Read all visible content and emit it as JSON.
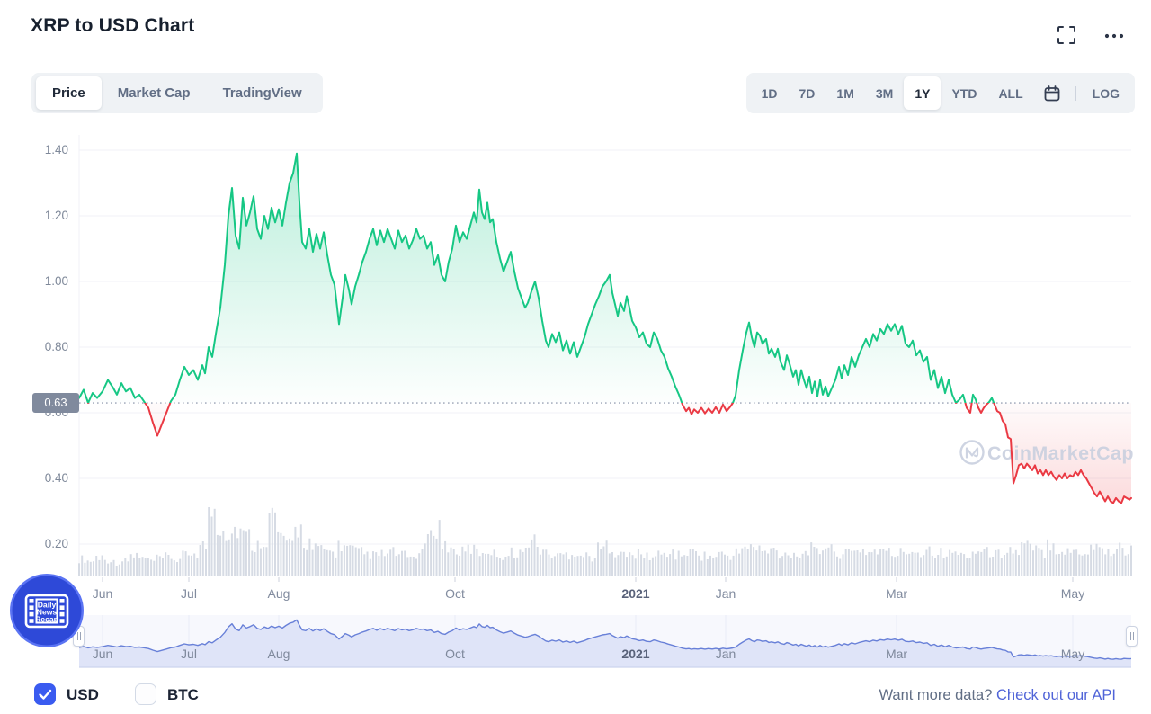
{
  "header": {
    "title": "XRP to USD Chart"
  },
  "tabs": {
    "items": [
      {
        "label": "Price",
        "active": true
      },
      {
        "label": "Market Cap",
        "active": false
      },
      {
        "label": "TradingView",
        "active": false
      }
    ]
  },
  "range_bar": {
    "items": [
      {
        "label": "1D",
        "active": false
      },
      {
        "label": "7D",
        "active": false
      },
      {
        "label": "1M",
        "active": false
      },
      {
        "label": "3M",
        "active": false
      },
      {
        "label": "1Y",
        "active": true
      },
      {
        "label": "YTD",
        "active": false
      },
      {
        "label": "ALL",
        "active": false
      }
    ],
    "calendar_icon": "calendar-icon",
    "log_label": "LOG"
  },
  "watermark": {
    "text": "CoinMarketCap"
  },
  "news_badge": {
    "lines": [
      "Daily",
      "News",
      "Recap"
    ]
  },
  "footer": {
    "currency_options": [
      {
        "label": "USD",
        "checked": true
      },
      {
        "label": "BTC",
        "checked": false
      }
    ],
    "prompt": "Want more data?",
    "link": "Check out our API"
  },
  "chart_data": {
    "type": "line",
    "title": "XRP to USD price, 1Y range",
    "x_axis": {
      "span": "May 2020 - May 2021",
      "xo_max": 1170,
      "ticks": [
        {
          "label": "Jun",
          "xo": 26
        },
        {
          "label": "Jul",
          "xo": 122
        },
        {
          "label": "Aug",
          "xo": 222
        },
        {
          "label": "Oct",
          "xo": 418
        },
        {
          "label": "2021",
          "xo": 619,
          "bold": true
        },
        {
          "label": "Jan",
          "xo": 719
        },
        {
          "label": "Mar",
          "xo": 909
        },
        {
          "label": "May",
          "xo": 1105
        }
      ]
    },
    "y_axis": {
      "unit": "USD",
      "ticks": [
        {
          "label": "1.40",
          "v": 1.4
        },
        {
          "label": "1.20",
          "v": 1.2
        },
        {
          "label": "1.00",
          "v": 1.0
        },
        {
          "label": "0.80",
          "v": 0.8
        },
        {
          "label": "0.60",
          "v": 0.6
        },
        {
          "label": "0.40",
          "v": 0.4
        },
        {
          "label": "0.20",
          "v": 0.2
        }
      ]
    },
    "current_price": 0.63,
    "current_price_label": "0.63",
    "threshold": 0.63,
    "colors": {
      "up": "#16c784",
      "down": "#ea3943",
      "volume": "#d6dbe4",
      "nav_line": "#6880d8",
      "nav_fill": "#dfe4f8",
      "nav_bg": "#f7f8fd",
      "grid": "#f0f2f7",
      "threshold_dots": "#9aa3b6",
      "price_tag_bg": "#808a9d",
      "watermark": "#c9d0df"
    },
    "price_series": [
      [
        0,
        0.645
      ],
      [
        5,
        0.67
      ],
      [
        10,
        0.63
      ],
      [
        15,
        0.66
      ],
      [
        20,
        0.645
      ],
      [
        26,
        0.665
      ],
      [
        32,
        0.7
      ],
      [
        38,
        0.675
      ],
      [
        42,
        0.655
      ],
      [
        47,
        0.69
      ],
      [
        52,
        0.665
      ],
      [
        57,
        0.675
      ],
      [
        62,
        0.645
      ],
      [
        67,
        0.655
      ],
      [
        72,
        0.635
      ],
      [
        77,
        0.615
      ],
      [
        82,
        0.57
      ],
      [
        87,
        0.53
      ],
      [
        92,
        0.565
      ],
      [
        97,
        0.6
      ],
      [
        102,
        0.635
      ],
      [
        107,
        0.655
      ],
      [
        112,
        0.7
      ],
      [
        117,
        0.74
      ],
      [
        122,
        0.715
      ],
      [
        127,
        0.73
      ],
      [
        132,
        0.7
      ],
      [
        137,
        0.745
      ],
      [
        140,
        0.72
      ],
      [
        144,
        0.8
      ],
      [
        148,
        0.77
      ],
      [
        152,
        0.84
      ],
      [
        157,
        0.92
      ],
      [
        162,
        1.05
      ],
      [
        166,
        1.2
      ],
      [
        170,
        1.285
      ],
      [
        174,
        1.14
      ],
      [
        178,
        1.1
      ],
      [
        182,
        1.255
      ],
      [
        186,
        1.17
      ],
      [
        190,
        1.21
      ],
      [
        194,
        1.26
      ],
      [
        198,
        1.16
      ],
      [
        202,
        1.13
      ],
      [
        206,
        1.2
      ],
      [
        210,
        1.16
      ],
      [
        214,
        1.225
      ],
      [
        218,
        1.18
      ],
      [
        222,
        1.22
      ],
      [
        226,
        1.17
      ],
      [
        230,
        1.24
      ],
      [
        234,
        1.3
      ],
      [
        238,
        1.33
      ],
      [
        242,
        1.39
      ],
      [
        245,
        1.24
      ],
      [
        248,
        1.12
      ],
      [
        252,
        1.1
      ],
      [
        256,
        1.16
      ],
      [
        260,
        1.09
      ],
      [
        264,
        1.145
      ],
      [
        268,
        1.1
      ],
      [
        272,
        1.15
      ],
      [
        276,
        1.08
      ],
      [
        280,
        1.02
      ],
      [
        284,
        0.99
      ],
      [
        289,
        0.87
      ],
      [
        293,
        0.95
      ],
      [
        296,
        1.02
      ],
      [
        300,
        0.975
      ],
      [
        303,
        0.93
      ],
      [
        307,
        0.985
      ],
      [
        311,
        1.02
      ],
      [
        315,
        1.06
      ],
      [
        319,
        1.09
      ],
      [
        323,
        1.13
      ],
      [
        327,
        1.16
      ],
      [
        331,
        1.11
      ],
      [
        335,
        1.155
      ],
      [
        339,
        1.12
      ],
      [
        343,
        1.16
      ],
      [
        347,
        1.13
      ],
      [
        351,
        1.1
      ],
      [
        355,
        1.155
      ],
      [
        359,
        1.12
      ],
      [
        363,
        1.14
      ],
      [
        367,
        1.1
      ],
      [
        371,
        1.125
      ],
      [
        375,
        1.16
      ],
      [
        379,
        1.13
      ],
      [
        383,
        1.14
      ],
      [
        387,
        1.1
      ],
      [
        391,
        1.12
      ],
      [
        395,
        1.05
      ],
      [
        399,
        1.08
      ],
      [
        403,
        1.02
      ],
      [
        407,
        1.0
      ],
      [
        411,
        1.06
      ],
      [
        415,
        1.1
      ],
      [
        419,
        1.17
      ],
      [
        423,
        1.12
      ],
      [
        427,
        1.15
      ],
      [
        431,
        1.13
      ],
      [
        435,
        1.17
      ],
      [
        439,
        1.21
      ],
      [
        442,
        1.18
      ],
      [
        445,
        1.28
      ],
      [
        448,
        1.21
      ],
      [
        451,
        1.19
      ],
      [
        454,
        1.24
      ],
      [
        457,
        1.18
      ],
      [
        460,
        1.19
      ],
      [
        464,
        1.12
      ],
      [
        468,
        1.07
      ],
      [
        472,
        1.03
      ],
      [
        476,
        1.06
      ],
      [
        480,
        1.09
      ],
      [
        484,
        1.03
      ],
      [
        488,
        0.98
      ],
      [
        492,
        0.95
      ],
      [
        496,
        0.92
      ],
      [
        499,
        0.935
      ],
      [
        503,
        0.97
      ],
      [
        507,
        1.0
      ],
      [
        511,
        0.95
      ],
      [
        515,
        0.88
      ],
      [
        519,
        0.82
      ],
      [
        522,
        0.8
      ],
      [
        526,
        0.84
      ],
      [
        530,
        0.815
      ],
      [
        534,
        0.845
      ],
      [
        538,
        0.79
      ],
      [
        542,
        0.82
      ],
      [
        546,
        0.78
      ],
      [
        550,
        0.815
      ],
      [
        554,
        0.77
      ],
      [
        558,
        0.8
      ],
      [
        562,
        0.83
      ],
      [
        566,
        0.87
      ],
      [
        570,
        0.9
      ],
      [
        574,
        0.93
      ],
      [
        578,
        0.955
      ],
      [
        582,
        0.985
      ],
      [
        586,
        1.0
      ],
      [
        590,
        1.02
      ],
      [
        593,
        0.965
      ],
      [
        596,
        0.93
      ],
      [
        599,
        0.895
      ],
      [
        602,
        0.935
      ],
      [
        606,
        0.91
      ],
      [
        609,
        0.955
      ],
      [
        612,
        0.92
      ],
      [
        615,
        0.88
      ],
      [
        619,
        0.86
      ],
      [
        623,
        0.83
      ],
      [
        627,
        0.845
      ],
      [
        631,
        0.81
      ],
      [
        635,
        0.8
      ],
      [
        639,
        0.845
      ],
      [
        643,
        0.825
      ],
      [
        647,
        0.79
      ],
      [
        651,
        0.77
      ],
      [
        655,
        0.735
      ],
      [
        659,
        0.71
      ],
      [
        663,
        0.68
      ],
      [
        667,
        0.655
      ],
      [
        671,
        0.625
      ],
      [
        675,
        0.605
      ],
      [
        678,
        0.615
      ],
      [
        681,
        0.595
      ],
      [
        684,
        0.61
      ],
      [
        688,
        0.6
      ],
      [
        692,
        0.615
      ],
      [
        696,
        0.598
      ],
      [
        700,
        0.613
      ],
      [
        704,
        0.6
      ],
      [
        708,
        0.617
      ],
      [
        712,
        0.6
      ],
      [
        716,
        0.625
      ],
      [
        720,
        0.605
      ],
      [
        724,
        0.618
      ],
      [
        727,
        0.63
      ],
      [
        730,
        0.652
      ],
      [
        734,
        0.73
      ],
      [
        738,
        0.79
      ],
      [
        742,
        0.845
      ],
      [
        745,
        0.875
      ],
      [
        748,
        0.83
      ],
      [
        751,
        0.8
      ],
      [
        754,
        0.845
      ],
      [
        757,
        0.835
      ],
      [
        760,
        0.81
      ],
      [
        764,
        0.825
      ],
      [
        767,
        0.78
      ],
      [
        770,
        0.795
      ],
      [
        774,
        0.77
      ],
      [
        777,
        0.795
      ],
      [
        780,
        0.755
      ],
      [
        784,
        0.73
      ],
      [
        787,
        0.775
      ],
      [
        790,
        0.75
      ],
      [
        794,
        0.71
      ],
      [
        797,
        0.73
      ],
      [
        800,
        0.685
      ],
      [
        803,
        0.73
      ],
      [
        806,
        0.7
      ],
      [
        809,
        0.675
      ],
      [
        812,
        0.71
      ],
      [
        815,
        0.66
      ],
      [
        818,
        0.695
      ],
      [
        821,
        0.65
      ],
      [
        824,
        0.7
      ],
      [
        827,
        0.655
      ],
      [
        830,
        0.68
      ],
      [
        833,
        0.65
      ],
      [
        837,
        0.675
      ],
      [
        841,
        0.7
      ],
      [
        845,
        0.74
      ],
      [
        848,
        0.705
      ],
      [
        851,
        0.745
      ],
      [
        855,
        0.715
      ],
      [
        859,
        0.77
      ],
      [
        863,
        0.74
      ],
      [
        867,
        0.775
      ],
      [
        871,
        0.8
      ],
      [
        875,
        0.825
      ],
      [
        879,
        0.8
      ],
      [
        883,
        0.84
      ],
      [
        887,
        0.82
      ],
      [
        891,
        0.855
      ],
      [
        895,
        0.84
      ],
      [
        899,
        0.87
      ],
      [
        903,
        0.85
      ],
      [
        907,
        0.87
      ],
      [
        911,
        0.84
      ],
      [
        915,
        0.865
      ],
      [
        919,
        0.81
      ],
      [
        923,
        0.8
      ],
      [
        927,
        0.82
      ],
      [
        931,
        0.775
      ],
      [
        935,
        0.79
      ],
      [
        939,
        0.755
      ],
      [
        943,
        0.77
      ],
      [
        947,
        0.7
      ],
      [
        951,
        0.73
      ],
      [
        955,
        0.675
      ],
      [
        959,
        0.71
      ],
      [
        963,
        0.66
      ],
      [
        967,
        0.7
      ],
      [
        971,
        0.655
      ],
      [
        975,
        0.63
      ],
      [
        979,
        0.64
      ],
      [
        983,
        0.655
      ],
      [
        987,
        0.615
      ],
      [
        991,
        0.6
      ],
      [
        994,
        0.655
      ],
      [
        997,
        0.64
      ],
      [
        1000,
        0.615
      ],
      [
        1003,
        0.6
      ],
      [
        1006,
        0.615
      ],
      [
        1009,
        0.625
      ],
      [
        1012,
        0.633
      ],
      [
        1015,
        0.645
      ],
      [
        1018,
        0.625
      ],
      [
        1021,
        0.605
      ],
      [
        1024,
        0.6
      ],
      [
        1027,
        0.575
      ],
      [
        1030,
        0.565
      ],
      [
        1033,
        0.525
      ],
      [
        1036,
        0.52
      ],
      [
        1039,
        0.385
      ],
      [
        1042,
        0.41
      ],
      [
        1045,
        0.44
      ],
      [
        1048,
        0.445
      ],
      [
        1051,
        0.43
      ],
      [
        1054,
        0.445
      ],
      [
        1057,
        0.435
      ],
      [
        1060,
        0.425
      ],
      [
        1063,
        0.44
      ],
      [
        1066,
        0.415
      ],
      [
        1069,
        0.425
      ],
      [
        1072,
        0.41
      ],
      [
        1075,
        0.425
      ],
      [
        1078,
        0.41
      ],
      [
        1081,
        0.42
      ],
      [
        1084,
        0.405
      ],
      [
        1087,
        0.395
      ],
      [
        1090,
        0.41
      ],
      [
        1093,
        0.4
      ],
      [
        1096,
        0.415
      ],
      [
        1099,
        0.4
      ],
      [
        1102,
        0.41
      ],
      [
        1105,
        0.405
      ],
      [
        1108,
        0.42
      ],
      [
        1111,
        0.41
      ],
      [
        1114,
        0.425
      ],
      [
        1117,
        0.41
      ],
      [
        1120,
        0.4
      ],
      [
        1123,
        0.385
      ],
      [
        1126,
        0.37
      ],
      [
        1129,
        0.355
      ],
      [
        1132,
        0.345
      ],
      [
        1135,
        0.36
      ],
      [
        1138,
        0.345
      ],
      [
        1141,
        0.33
      ],
      [
        1144,
        0.345
      ],
      [
        1147,
        0.33
      ],
      [
        1150,
        0.325
      ],
      [
        1153,
        0.34
      ],
      [
        1156,
        0.33
      ],
      [
        1159,
        0.325
      ],
      [
        1162,
        0.345
      ],
      [
        1165,
        0.34
      ],
      [
        1168,
        0.335
      ],
      [
        1170,
        0.34
      ]
    ],
    "navigator_uses": "price_series",
    "volume_rel": [
      0.25,
      0.22,
      0.28,
      0.24,
      0.2,
      0.22,
      0.3,
      0.26,
      0.22,
      0.25,
      0.28,
      0.24,
      0.3,
      0.35,
      0.45,
      1.0,
      0.75,
      0.65,
      0.7,
      0.6,
      0.45,
      0.55,
      0.9,
      0.6,
      0.45,
      0.7,
      0.5,
      0.4,
      0.38,
      0.35,
      0.45,
      0.4,
      0.35,
      0.32,
      0.3,
      0.32,
      0.35,
      0.3,
      0.28,
      0.32,
      0.55,
      0.75,
      0.45,
      0.38,
      0.35,
      0.4,
      0.35,
      0.38,
      0.32,
      0.3,
      0.35,
      0.35,
      0.55,
      0.4,
      0.32,
      0.3,
      0.32,
      0.35,
      0.3,
      0.28,
      0.4,
      0.45,
      0.35,
      0.3,
      0.32,
      0.3,
      0.28,
      0.32,
      0.35,
      0.3,
      0.35,
      0.35,
      0.3,
      0.28,
      0.32,
      0.3,
      0.35,
      0.45,
      0.4,
      0.35,
      0.38,
      0.32,
      0.35,
      0.3,
      0.4,
      0.35,
      0.45,
      0.38,
      0.32,
      0.35,
      0.4,
      0.35,
      0.38,
      0.35,
      0.32,
      0.35,
      0.38,
      0.35,
      0.4,
      0.35,
      0.32,
      0.35,
      0.3,
      0.35,
      0.38,
      0.35,
      0.32,
      0.4,
      0.35,
      0.45,
      0.4,
      0.35,
      0.5,
      0.4,
      0.35,
      0.38,
      0.35,
      0.45,
      0.4,
      0.35,
      0.42,
      0.38
    ]
  }
}
